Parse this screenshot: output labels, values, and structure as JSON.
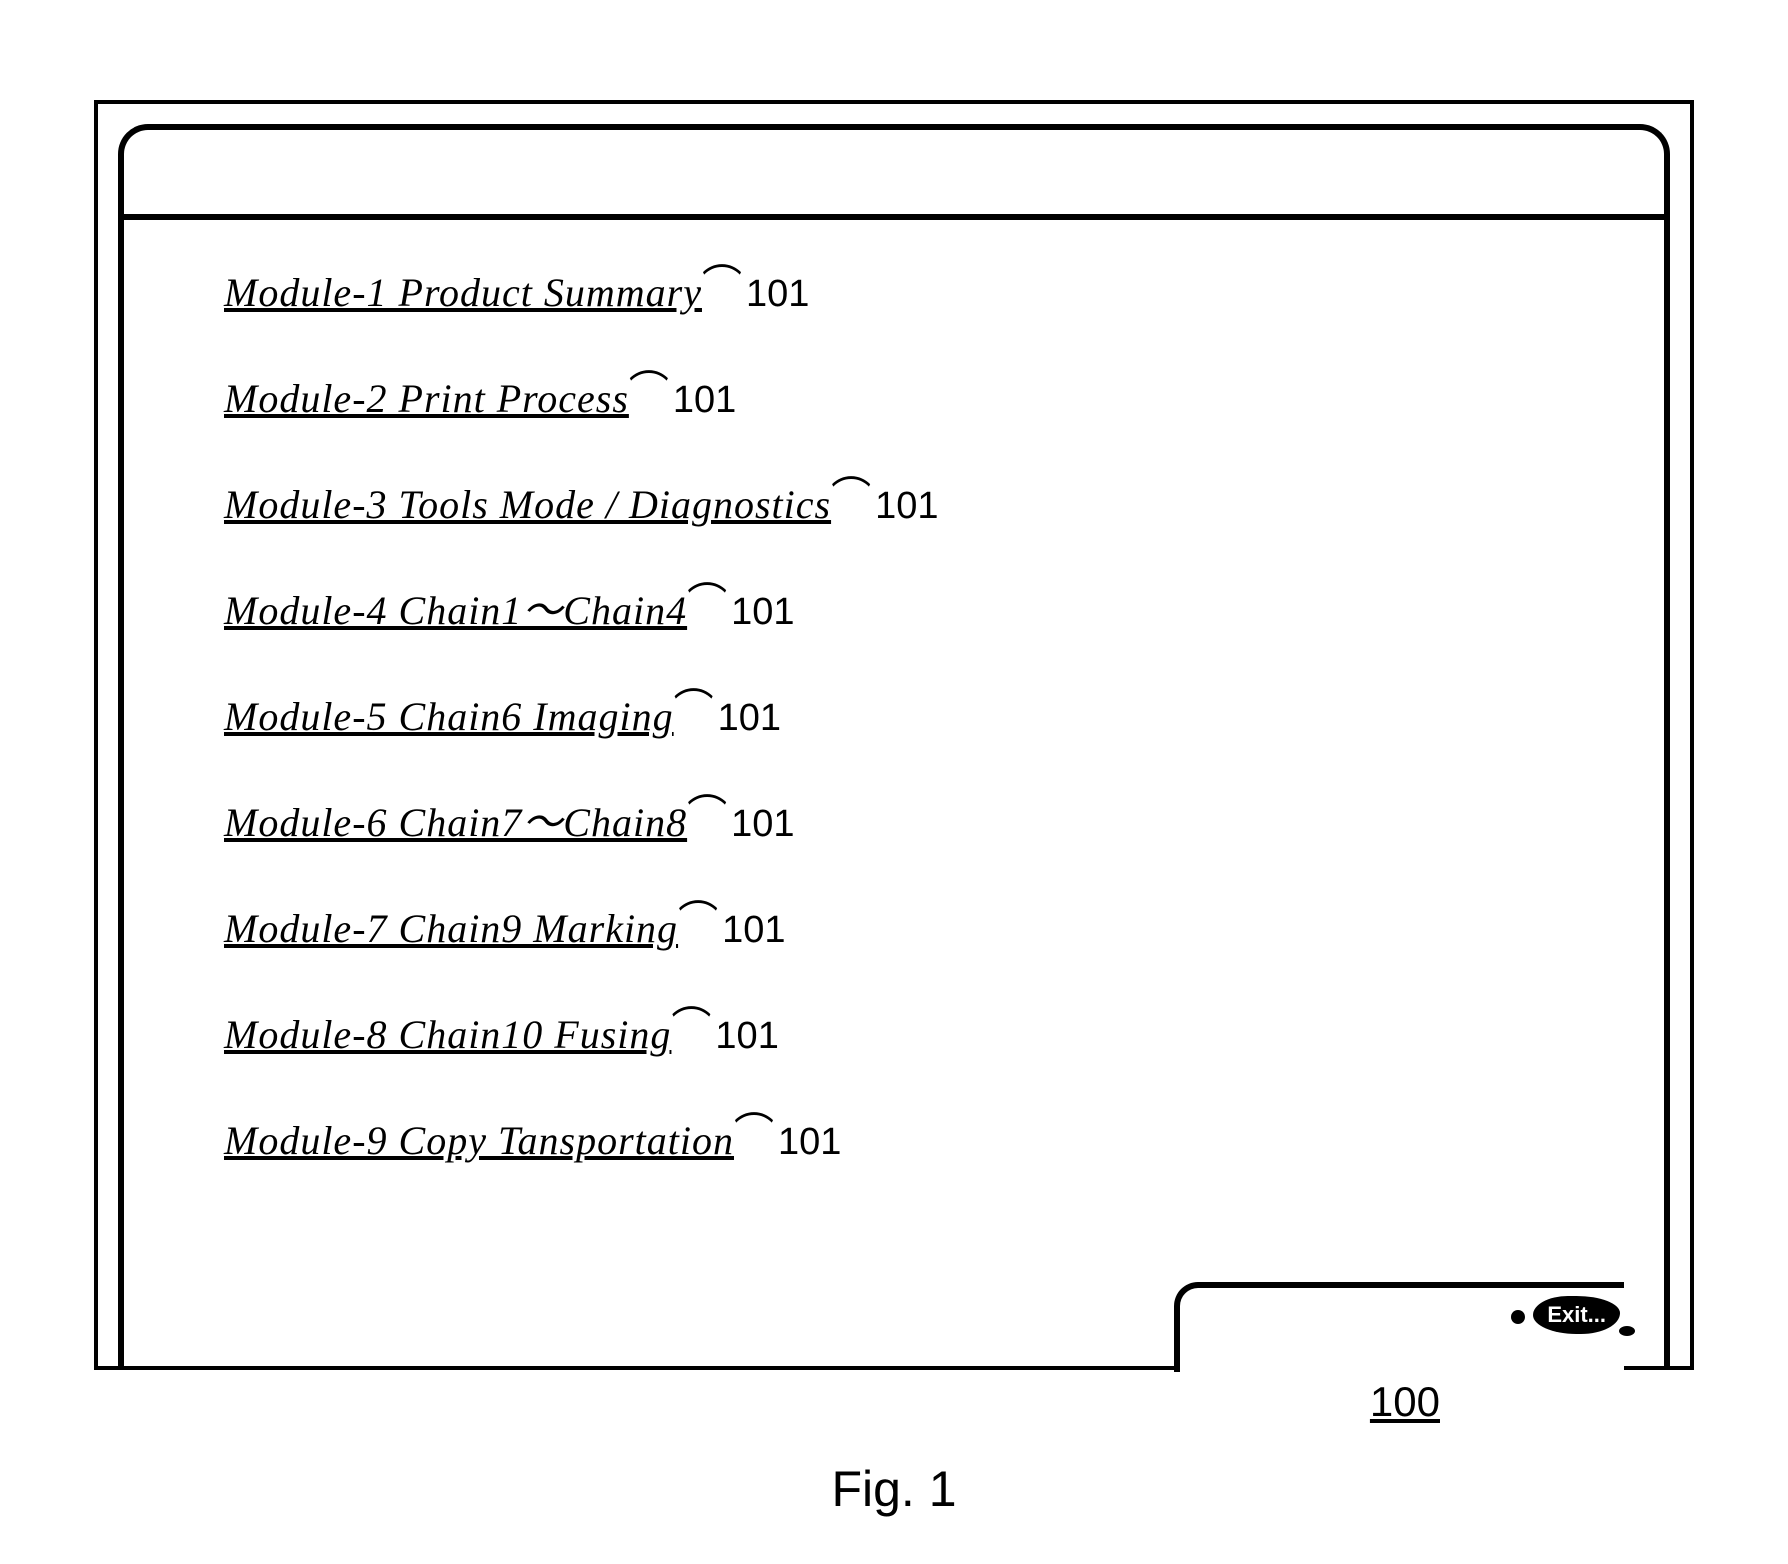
{
  "figure": {
    "label": "Fig. 1",
    "window_ref": "100",
    "item_ref": "101"
  },
  "window": {
    "exit_label": "Exit..."
  },
  "modules": [
    {
      "label": "Module-1 Product Summary"
    },
    {
      "label": "Module-2 Print Process"
    },
    {
      "label": "Module-3  Tools Mode / Diagnostics"
    },
    {
      "label": "Module-4  Chain1～Chain4"
    },
    {
      "label": "Module-5  Chain6 Imaging"
    },
    {
      "label": "Module-6  Chain7～Chain8"
    },
    {
      "label": "Module-7  Chain9  Marking"
    },
    {
      "label": "Module-8  Chain10  Fusing"
    },
    {
      "label": "Module-9  Copy  Tansportation"
    }
  ],
  "style": {
    "link_font": "italic serif",
    "link_fontsize": 40,
    "ref_fontsize": 38,
    "border_color": "#000000",
    "background_color": "#ffffff",
    "border_width": 6,
    "corner_radius": 30
  }
}
